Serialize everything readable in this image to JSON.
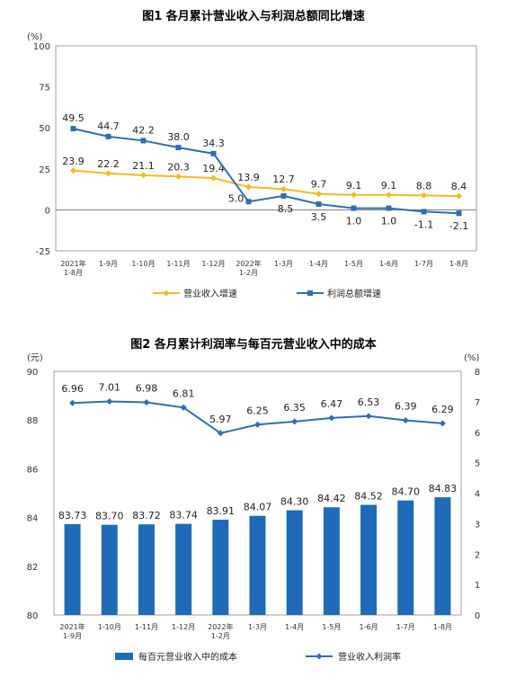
{
  "chart_data": [
    {
      "type": "line",
      "title": "图1  各月累计营业收入与利润总额同比增速",
      "y_unit": "(%)",
      "ylim": [
        -25,
        100
      ],
      "yticks": [
        -25,
        0,
        25,
        50,
        75,
        100
      ],
      "categories": [
        "2021年\n1-8月",
        "1-9月",
        "1-10月",
        "1-11月",
        "1-12月",
        "2022年\n1-2月",
        "1-3月",
        "1-4月",
        "1-5月",
        "1-6月",
        "1-7月",
        "1-8月"
      ],
      "series": [
        {
          "name": "营业收入增速",
          "color": "#f5b922",
          "values": [
            23.9,
            22.2,
            21.1,
            20.3,
            19.4,
            13.9,
            12.7,
            9.7,
            9.1,
            9.1,
            8.8,
            8.4
          ],
          "labels": [
            "23.9",
            "22.2",
            "21.1",
            "20.3",
            "19.4",
            "13.9",
            "12.7",
            "9.7",
            "9.1",
            "9.1",
            "8.8",
            "8.4"
          ]
        },
        {
          "name": "利润总额增速",
          "color": "#2e6db4",
          "values": [
            49.5,
            44.7,
            42.2,
            38.0,
            34.3,
            5.0,
            8.5,
            3.5,
            1.0,
            1.0,
            -1.1,
            -2.1
          ],
          "labels": [
            "49.5",
            "44.7",
            "42.2",
            "38.0",
            "34.3",
            "5.0",
            "8.5",
            "3.5",
            "1.0",
            "1.0",
            "-1.1",
            "-2.1"
          ]
        }
      ],
      "grid": false,
      "legend": "bottom"
    },
    {
      "type": "bar",
      "title": "图2  各月累计利润率与每百元营业收入中的成本",
      "y_unit_left": "(元)",
      "y_unit_right": "(%)",
      "ylim_left": [
        80,
        90
      ],
      "yticks_left": [
        80,
        82,
        84,
        86,
        88,
        90
      ],
      "ylim_right": [
        0,
        8
      ],
      "yticks_right": [
        0,
        1,
        2,
        3,
        4,
        5,
        6,
        7,
        8
      ],
      "categories": [
        "2021年\n1-9月",
        "1-10月",
        "1-11月",
        "1-12月",
        "2022年\n1-2月",
        "1-3月",
        "1-4月",
        "1-5月",
        "1-6月",
        "1-7月",
        "1-8月"
      ],
      "series": [
        {
          "name": "每百元营业收入中的成本",
          "kind": "bar",
          "axis": "left",
          "color": "#1f6bb8",
          "values": [
            83.73,
            83.7,
            83.72,
            83.74,
            83.91,
            84.07,
            84.3,
            84.42,
            84.52,
            84.7,
            84.83
          ],
          "labels": [
            "83.73",
            "83.70",
            "83.72",
            "83.74",
            "83.91",
            "84.07",
            "84.30",
            "84.42",
            "84.52",
            "84.70",
            "84.83"
          ]
        },
        {
          "name": "营业收入利润率",
          "kind": "line",
          "axis": "right",
          "color": "#2e6db4",
          "values": [
            6.96,
            7.01,
            6.98,
            6.81,
            5.97,
            6.25,
            6.35,
            6.47,
            6.53,
            6.39,
            6.29
          ],
          "labels": [
            "6.96",
            "7.01",
            "6.98",
            "6.81",
            "5.97",
            "6.25",
            "6.35",
            "6.47",
            "6.53",
            "6.39",
            "6.29"
          ]
        }
      ],
      "grid": false,
      "legend": "bottom"
    }
  ]
}
